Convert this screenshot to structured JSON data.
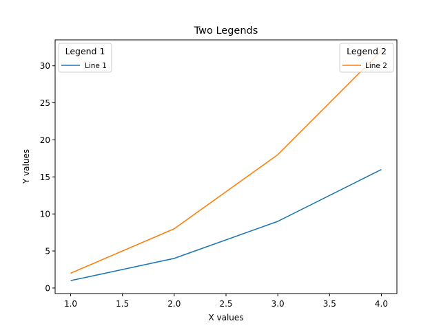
{
  "chart_data": {
    "type": "line",
    "title": "Two Legends",
    "xlabel": "X values",
    "ylabel": "Y values",
    "x": [
      1,
      2,
      3,
      4
    ],
    "xlim": [
      0.85,
      4.15
    ],
    "ylim": [
      -0.75,
      33.5
    ],
    "xticks": [
      1.0,
      1.5,
      2.0,
      2.5,
      3.0,
      3.5,
      4.0
    ],
    "xtick_labels": [
      "1.0",
      "1.5",
      "2.0",
      "2.5",
      "3.0",
      "3.5",
      "4.0"
    ],
    "yticks": [
      0,
      5,
      10,
      15,
      20,
      25,
      30
    ],
    "ytick_labels": [
      "0",
      "5",
      "10",
      "15",
      "20",
      "25",
      "30"
    ],
    "grid": false,
    "series": [
      {
        "name": "Line 1",
        "values": [
          1,
          4,
          9,
          16
        ],
        "color": "#1f77b4"
      },
      {
        "name": "Line 2",
        "values": [
          2,
          8,
          18,
          32
        ],
        "color": "#ff7f0e"
      }
    ],
    "legends": [
      {
        "title": "Legend 1",
        "placement": "top-left",
        "series_index": 0
      },
      {
        "title": "Legend 2",
        "placement": "top-right",
        "series_index": 1
      }
    ]
  }
}
